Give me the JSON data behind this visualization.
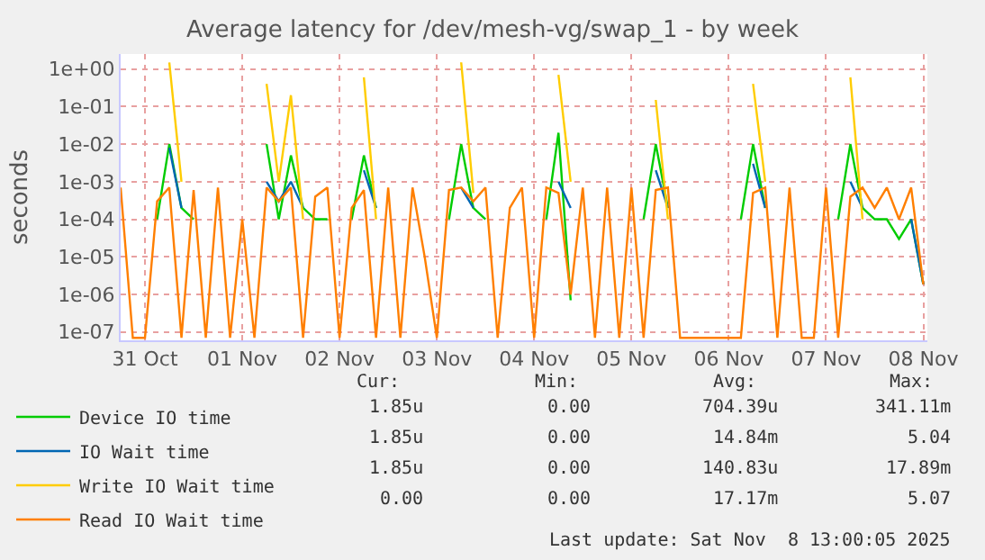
{
  "chart_data": {
    "type": "line",
    "title": "Average latency for /dev/mesh-vg/swap_1 - by week",
    "ylabel": "seconds",
    "log": "y",
    "grid": true,
    "legend": "bottom left",
    "marker": "none",
    "line_style": "solid",
    "xlim": [
      "2025-10-31T06:00",
      "2025-11-08T13:00"
    ],
    "xticks": [
      {
        "value": "2025-10-31T12:00",
        "label": "31 Oct"
      },
      {
        "value": "2025-11-01T12:00",
        "label": "01 Nov"
      },
      {
        "value": "2025-11-02T12:00",
        "label": "02 Nov"
      },
      {
        "value": "2025-11-03T12:00",
        "label": "03 Nov"
      },
      {
        "value": "2025-11-04T12:00",
        "label": "04 Nov"
      },
      {
        "value": "2025-11-05T12:00",
        "label": "05 Nov"
      },
      {
        "value": "2025-11-06T12:00",
        "label": "06 Nov"
      },
      {
        "value": "2025-11-07T12:00",
        "label": "07 Nov"
      },
      {
        "value": "2025-11-08T12:00",
        "label": "08 Nov"
      }
    ],
    "ylim": [
      6e-08,
      2.5
    ],
    "yticks": [
      {
        "value": 1,
        "label": "1e+00"
      },
      {
        "value": 0.1,
        "label": "1e-01"
      },
      {
        "value": 0.01,
        "label": "1e-02"
      },
      {
        "value": 0.001,
        "label": "1e-03"
      },
      {
        "value": 0.0001,
        "label": "1e-04"
      },
      {
        "value": 1e-05,
        "label": "1e-05"
      },
      {
        "value": 1e-06,
        "label": "1e-06"
      },
      {
        "value": 1e-07,
        "label": "1e-07"
      }
    ],
    "x": [
      "2025-10-31T06:00",
      "2025-10-31T09:00",
      "2025-10-31T12:00",
      "2025-10-31T15:00",
      "2025-10-31T18:00",
      "2025-10-31T21:00",
      "2025-11-01T00:00",
      "2025-11-01T03:00",
      "2025-11-01T06:00",
      "2025-11-01T09:00",
      "2025-11-01T12:00",
      "2025-11-01T15:00",
      "2025-11-01T18:00",
      "2025-11-01T21:00",
      "2025-11-02T00:00",
      "2025-11-02T03:00",
      "2025-11-02T06:00",
      "2025-11-02T09:00",
      "2025-11-02T12:00",
      "2025-11-02T15:00",
      "2025-11-02T18:00",
      "2025-11-02T21:00",
      "2025-11-03T00:00",
      "2025-11-03T03:00",
      "2025-11-03T06:00",
      "2025-11-03T09:00",
      "2025-11-03T12:00",
      "2025-11-03T15:00",
      "2025-11-03T18:00",
      "2025-11-03T21:00",
      "2025-11-04T00:00",
      "2025-11-04T03:00",
      "2025-11-04T06:00",
      "2025-11-04T09:00",
      "2025-11-04T12:00",
      "2025-11-04T15:00",
      "2025-11-04T18:00",
      "2025-11-04T21:00",
      "2025-11-05T00:00",
      "2025-11-05T03:00",
      "2025-11-05T06:00",
      "2025-11-05T09:00",
      "2025-11-05T12:00",
      "2025-11-05T15:00",
      "2025-11-05T18:00",
      "2025-11-05T21:00",
      "2025-11-06T00:00",
      "2025-11-06T03:00",
      "2025-11-06T06:00",
      "2025-11-06T09:00",
      "2025-11-06T12:00",
      "2025-11-06T15:00",
      "2025-11-06T18:00",
      "2025-11-06T21:00",
      "2025-11-07T00:00",
      "2025-11-07T03:00",
      "2025-11-07T06:00",
      "2025-11-07T09:00",
      "2025-11-07T12:00",
      "2025-11-07T15:00",
      "2025-11-07T18:00",
      "2025-11-07T21:00",
      "2025-11-08T00:00",
      "2025-11-08T03:00",
      "2025-11-08T06:00",
      "2025-11-08T09:00",
      "2025-11-08T12:00"
    ],
    "series": [
      {
        "name": "Device IO time",
        "color": "#00cc00",
        "values": [
          null,
          null,
          null,
          0.0001,
          0.01,
          0.0002,
          0.0001,
          null,
          null,
          null,
          null,
          null,
          0.01,
          0.0001,
          0.005,
          0.0002,
          0.0001,
          0.0001,
          null,
          0.0001,
          0.005,
          0.0002,
          null,
          null,
          null,
          null,
          null,
          0.0001,
          0.01,
          0.0002,
          0.0001,
          null,
          null,
          null,
          null,
          0.0001,
          0.02,
          7e-07,
          null,
          null,
          null,
          null,
          null,
          0.0001,
          0.01,
          0.0002,
          null,
          null,
          null,
          null,
          null,
          0.0001,
          0.01,
          0.0002,
          null,
          null,
          null,
          null,
          null,
          0.0001,
          0.01,
          0.0002,
          0.0001,
          0.0001,
          3e-05,
          0.0001,
          1.85e-06
        ]
      },
      {
        "name": "IO Wait time",
        "color": "#0066b3",
        "values": [
          null,
          null,
          null,
          null,
          0.008,
          0.0002,
          null,
          null,
          null,
          null,
          null,
          null,
          0.001,
          0.0003,
          0.001,
          0.0002,
          null,
          null,
          null,
          null,
          0.002,
          0.0002,
          null,
          null,
          null,
          null,
          null,
          null,
          0.0007,
          0.0002,
          null,
          null,
          null,
          null,
          null,
          null,
          0.001,
          0.0002,
          null,
          null,
          null,
          null,
          null,
          null,
          0.002,
          0.0002,
          null,
          null,
          null,
          null,
          null,
          null,
          0.003,
          0.0002,
          null,
          null,
          null,
          null,
          null,
          null,
          0.001,
          0.0002,
          null,
          null,
          null,
          0.0001,
          1.85e-06
        ]
      },
      {
        "name": "Write IO Wait time",
        "color": "#ffcc00",
        "values": [
          null,
          null,
          null,
          null,
          1.5,
          0.001,
          null,
          null,
          null,
          null,
          null,
          null,
          0.4,
          0.001,
          0.2,
          0.0001,
          null,
          null,
          null,
          null,
          0.6,
          0.0001,
          null,
          null,
          null,
          null,
          null,
          null,
          1.5,
          0.0005,
          null,
          null,
          null,
          null,
          null,
          null,
          0.7,
          0.001,
          null,
          null,
          null,
          null,
          null,
          null,
          0.15,
          0.0001,
          null,
          null,
          null,
          null,
          null,
          null,
          0.4,
          0.001,
          null,
          null,
          null,
          null,
          null,
          null,
          0.6,
          0.0001,
          null,
          null,
          null,
          null,
          null
        ]
      },
      {
        "name": "Read IO Wait time",
        "color": "#ff7f00",
        "values": [
          0.0007,
          7e-08,
          7e-08,
          0.0003,
          0.0007,
          7e-08,
          0.0006,
          7e-08,
          0.0007,
          7e-08,
          0.0001,
          7e-08,
          0.0007,
          0.0003,
          0.0007,
          7e-08,
          0.0004,
          0.0007,
          7e-08,
          0.0002,
          0.0006,
          7e-08,
          0.0007,
          7e-08,
          0.0007,
          1e-05,
          7e-08,
          0.0006,
          0.0007,
          0.0003,
          0.0007,
          7e-08,
          0.0002,
          0.0007,
          7e-08,
          0.0007,
          0.0005,
          1e-06,
          0.0007,
          7e-08,
          0.0007,
          7e-08,
          0.0007,
          7e-08,
          0.0006,
          0.0007,
          7e-08,
          7e-08,
          7e-08,
          7e-08,
          7e-08,
          7e-08,
          0.0005,
          0.0007,
          7e-08,
          0.0007,
          7e-08,
          7e-08,
          0.0007,
          7e-08,
          0.0004,
          0.0007,
          0.0002,
          0.0007,
          0.0001,
          0.0007,
          1.85e-06
        ]
      }
    ],
    "annotations": [
      "Cur:",
      "Min:",
      "Avg:",
      "Max:",
      "1.85u",
      "0.00",
      "704.39u",
      "341.11m",
      "1.85u",
      "0.00",
      "14.84m",
      "5.04",
      "1.85u",
      "0.00",
      "140.83u",
      "17.89m",
      "0.00",
      "0.00",
      "17.17m",
      "5.07",
      "Last update: Sat Nov  8 13:00:05 2025"
    ]
  }
}
